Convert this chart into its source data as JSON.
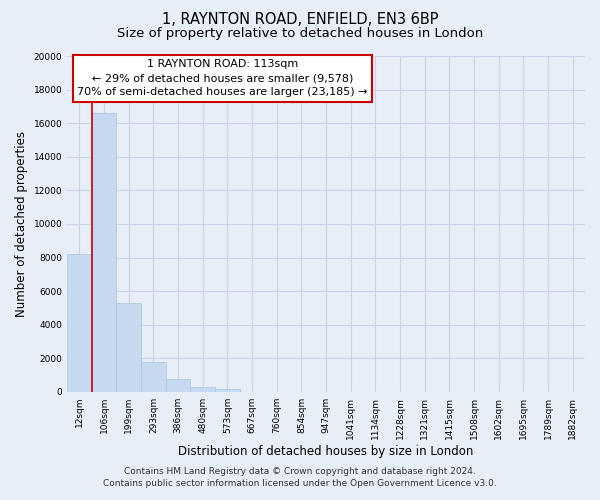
{
  "title1": "1, RAYNTON ROAD, ENFIELD, EN3 6BP",
  "title2": "Size of property relative to detached houses in London",
  "xlabel": "Distribution of detached houses by size in London",
  "ylabel": "Number of detached properties",
  "bar_labels": [
    "12sqm",
    "106sqm",
    "199sqm",
    "293sqm",
    "386sqm",
    "480sqm",
    "573sqm",
    "667sqm",
    "760sqm",
    "854sqm",
    "947sqm",
    "1041sqm",
    "1134sqm",
    "1228sqm",
    "1321sqm",
    "1415sqm",
    "1508sqm",
    "1602sqm",
    "1695sqm",
    "1789sqm",
    "1882sqm"
  ],
  "bar_values": [
    8200,
    16600,
    5300,
    1800,
    750,
    300,
    200,
    0,
    0,
    0,
    0,
    0,
    0,
    0,
    0,
    0,
    0,
    0,
    0,
    0,
    0
  ],
  "bar_color": "#c6d9f0",
  "bar_edge_color": "#a8c4e0",
  "vline_color": "#cc0000",
  "ylim": [
    0,
    20000
  ],
  "yticks": [
    0,
    2000,
    4000,
    6000,
    8000,
    10000,
    12000,
    14000,
    16000,
    18000,
    20000
  ],
  "annotation_box_text_line1": "1 RAYNTON ROAD: 113sqm",
  "annotation_box_text_line2": "← 29% of detached houses are smaller (9,578)",
  "annotation_box_text_line3": "70% of semi-detached houses are larger (23,185) →",
  "annotation_box_color": "#ffffff",
  "annotation_box_edge_color": "#cc0000",
  "footer_line1": "Contains HM Land Registry data © Crown copyright and database right 2024.",
  "footer_line2": "Contains public sector information licensed under the Open Government Licence v3.0.",
  "background_color": "#e8eef8",
  "plot_bg_color": "#e8eef8",
  "grid_color": "#c8d4e8",
  "title_fontsize": 10.5,
  "subtitle_fontsize": 9.5,
  "axis_label_fontsize": 8.5,
  "tick_fontsize": 6.5,
  "annotation_fontsize": 8,
  "footer_fontsize": 6.5
}
